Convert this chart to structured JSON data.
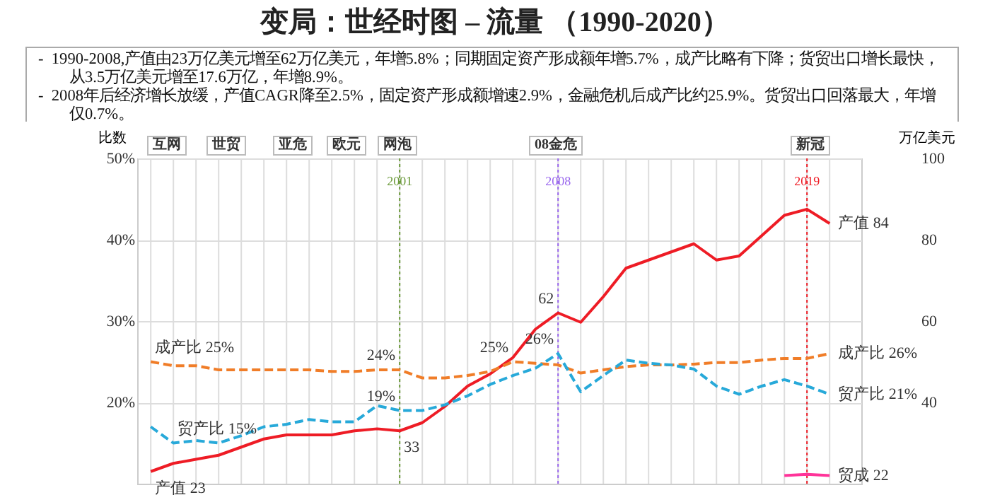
{
  "chart_data": {
    "type": "line",
    "title": "变局：世经时图 – 流量 （1990-2020）",
    "annotations": [
      "-  1990-2008,产值由23万亿美元增至62万亿美元，年增5.8%；同期固定资产形成额年增5.7%，成产比略有下降；货贸出口增长最快，从3.5万亿美元增至17.6万亿，年增8.9%。",
      "-  2008年后经济增长放缓，产值CAGR降至2.5%，固定资产形成额增速2.9%，金融危机后成产比约25.9%。货贸出口回落最大，年增仅0.7%。",
      "互网",
      "世贸",
      "亚危",
      "欧元",
      "网泡",
      "08金危",
      "新冠"
    ],
    "ylabel": "比数",
    "y2label": "万亿美元",
    "x": [
      1990,
      1991,
      1992,
      1993,
      1994,
      1995,
      1996,
      1997,
      1998,
      1999,
      2000,
      2001,
      2002,
      2003,
      2004,
      2005,
      2006,
      2007,
      2008,
      2009,
      2010,
      2011,
      2012,
      2013,
      2014,
      2015,
      2016,
      2017,
      2018,
      2019,
      2020
    ],
    "xlim": [
      1989.4,
      2021.4
    ],
    "xticks": [
      {
        "value": 1990,
        "label": null
      },
      {
        "value": 1991,
        "label": null
      },
      {
        "value": 1992,
        "label": null
      },
      {
        "value": 1993,
        "label": null
      },
      {
        "value": 1994,
        "label": null
      },
      {
        "value": 1995,
        "label": null
      },
      {
        "value": 1996,
        "label": null
      },
      {
        "value": 1997,
        "label": null
      },
      {
        "value": 1998,
        "label": null
      },
      {
        "value": 1999,
        "label": null
      },
      {
        "value": 2000,
        "label": null
      },
      {
        "value": 2001,
        "label": null
      },
      {
        "value": 2002,
        "label": null
      },
      {
        "value": 2003,
        "label": null
      },
      {
        "value": 2004,
        "label": null
      },
      {
        "value": 2005,
        "label": null
      },
      {
        "value": 2006,
        "label": null
      },
      {
        "value": 2007,
        "label": null
      },
      {
        "value": 2008,
        "label": null
      },
      {
        "value": 2009,
        "label": null
      },
      {
        "value": 2010,
        "label": null
      },
      {
        "value": 2011,
        "label": null
      },
      {
        "value": 2012,
        "label": null
      },
      {
        "value": 2013,
        "label": null
      },
      {
        "value": 2014,
        "label": null
      },
      {
        "value": 2015,
        "label": null
      },
      {
        "value": 2016,
        "label": null
      },
      {
        "value": 2017,
        "label": null
      },
      {
        "value": 2018,
        "label": null
      },
      {
        "value": 2019,
        "label": null
      },
      {
        "value": 2020,
        "label": null
      }
    ],
    "ylim": [
      10,
      50
    ],
    "yticks": [
      {
        "value": 20,
        "label": "20%"
      },
      {
        "value": 30,
        "label": "30%"
      },
      {
        "value": 40,
        "label": "40%"
      },
      {
        "value": 50,
        "label": "50%"
      }
    ],
    "y2lim": [
      20,
      100
    ],
    "y2ticks": [
      40,
      60,
      80,
      100
    ],
    "tick_labels": "y",
    "grid": true,
    "series": [
      {
        "axis": "y2",
        "color": "#ee1c25",
        "line_style": "solid",
        "values": [
          23,
          25,
          26,
          27,
          29,
          31,
          32,
          32,
          32,
          33,
          33.5,
          33,
          35,
          39,
          44,
          47,
          51,
          58,
          62,
          59.7,
          66,
          73,
          75,
          77,
          79,
          75,
          76,
          81,
          86,
          87.5,
          84
        ],
        "value_labels": [
          "产值 23",
          null,
          null,
          null,
          null,
          null,
          null,
          null,
          null,
          null,
          null,
          "33",
          null,
          null,
          null,
          null,
          null,
          null,
          "62",
          null,
          null,
          null,
          null,
          null,
          null,
          null,
          null,
          null,
          null,
          null,
          "产值 84"
        ]
      },
      {
        "color": "#f07d28",
        "line_style": "dashed",
        "values": [
          25,
          24.5,
          24.5,
          24,
          24,
          24,
          24,
          24,
          23.8,
          23.8,
          24,
          24,
          23,
          23,
          23.3,
          23.8,
          25,
          24.8,
          24.6,
          23.6,
          24,
          24.4,
          24.6,
          24.6,
          24.7,
          24.9,
          24.9,
          25.2,
          25.4,
          25.4,
          26
        ],
        "value_labels": [
          "成产比 25%",
          null,
          null,
          null,
          null,
          null,
          null,
          null,
          null,
          null,
          null,
          "24%",
          null,
          null,
          null,
          null,
          "25%",
          null,
          null,
          null,
          null,
          null,
          null,
          null,
          null,
          null,
          null,
          null,
          null,
          null,
          "成产比 26%"
        ]
      },
      {
        "color": "#27a9d9",
        "line_style": "dashed",
        "values": [
          17,
          15,
          15.3,
          15,
          15.9,
          17,
          17.3,
          17.9,
          17.6,
          17.6,
          19.6,
          19,
          19,
          19.7,
          20.8,
          22.2,
          23.3,
          24.2,
          26,
          21.3,
          23.3,
          25.2,
          24.8,
          24.6,
          24.1,
          22,
          21,
          22,
          22.8,
          22,
          21
        ],
        "value_labels": [
          null,
          "贸产比 15%",
          null,
          null,
          null,
          null,
          null,
          null,
          null,
          null,
          null,
          "19%",
          null,
          null,
          null,
          null,
          null,
          null,
          "26%",
          null,
          null,
          null,
          null,
          null,
          null,
          null,
          null,
          null,
          null,
          null,
          "贸产比 21%"
        ]
      },
      {
        "axis": "y2",
        "color": "#ff3399",
        "line_style": "solid",
        "x": [
          2018,
          2019,
          2020
        ],
        "values": [
          22,
          22.3,
          22
        ],
        "value_labels": [
          null,
          null,
          "贸成 22"
        ]
      }
    ],
    "ref_lines": [
      {
        "axis": "x",
        "value": 2001,
        "label": "2001",
        "color": "#6b9a3a",
        "line_style": "dotted"
      },
      {
        "axis": "x",
        "value": 2008,
        "label": "2008",
        "color": "#9966ee",
        "line_style": "dotted"
      },
      {
        "axis": "x",
        "value": 2019,
        "label": "2019",
        "color": "#ee1c25",
        "line_style": "dotted"
      }
    ]
  }
}
